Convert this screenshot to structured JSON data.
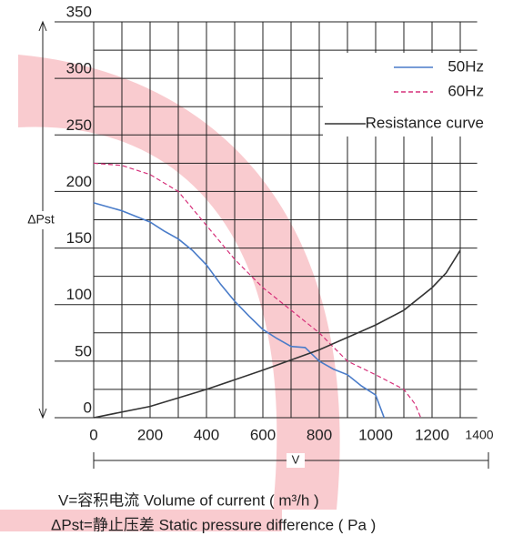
{
  "chart_data": {
    "type": "line",
    "y_label": "ΔPst",
    "x_label": "V",
    "xlim": [
      0,
      1400
    ],
    "ylim": [
      0,
      350
    ],
    "xticks": [
      0,
      200,
      400,
      600,
      800,
      1000,
      1200,
      1400
    ],
    "yticks": [
      0,
      50,
      100,
      150,
      200,
      250,
      300,
      350
    ],
    "xgrid": [
      0,
      100,
      200,
      300,
      400,
      500,
      600,
      700,
      800,
      900,
      1000,
      1100,
      1200,
      1300
    ],
    "ygrid": [
      0,
      25,
      50,
      75,
      100,
      125,
      150,
      175,
      200,
      225,
      250,
      275,
      300,
      325,
      350
    ],
    "legend": "upper right",
    "series": [
      {
        "name": "50Hz",
        "color": "#4a7cc9",
        "style": "solid",
        "x": [
          0,
          100,
          200,
          250,
          300,
          350,
          400,
          450,
          500,
          550,
          600,
          650,
          700,
          750,
          800,
          850,
          900,
          950,
          1000,
          1030
        ],
        "values": [
          190,
          183,
          173,
          165,
          158,
          148,
          135,
          118,
          103,
          90,
          78,
          70,
          63,
          62,
          50,
          43,
          38,
          28,
          20,
          0
        ]
      },
      {
        "name": "60Hz",
        "color": "#d6307a",
        "style": "dashed",
        "x": [
          0,
          100,
          200,
          300,
          400,
          500,
          600,
          700,
          800,
          900,
          1000,
          1100,
          1140,
          1160
        ],
        "values": [
          225,
          223,
          215,
          200,
          170,
          140,
          115,
          95,
          75,
          50,
          38,
          25,
          12,
          0
        ]
      },
      {
        "name": "Resistance curve",
        "color": "#333333",
        "style": "solid",
        "x": [
          0,
          200,
          400,
          600,
          800,
          1000,
          1100,
          1200,
          1250,
          1300
        ],
        "values": [
          0,
          10,
          25,
          42,
          60,
          82,
          95,
          115,
          128,
          148
        ]
      }
    ],
    "notes": [
      "V=容积电流 Volume of current ( m³/h )",
      "ΔPst=静止压差 Static pressure difference ( Pa )"
    ]
  }
}
